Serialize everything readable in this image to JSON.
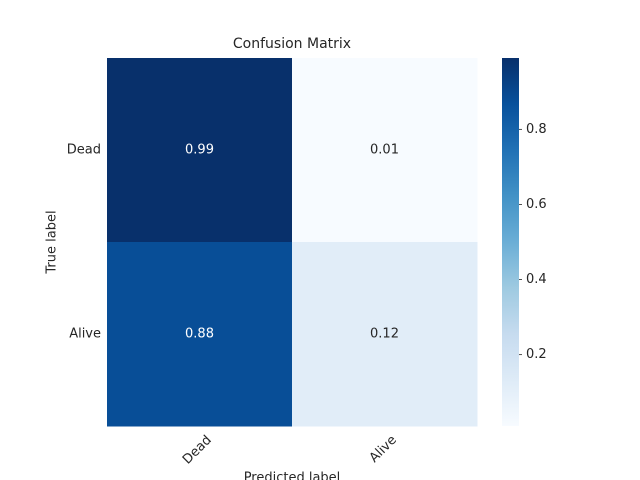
{
  "chart_data": {
    "type": "heatmap",
    "title": "Confusion Matrix",
    "x_categories": [
      "Dead",
      "Alive"
    ],
    "y_categories": [
      "Dead",
      "Alive"
    ],
    "values": [
      [
        0.99,
        0.01
      ],
      [
        0.88,
        0.12
      ]
    ],
    "xlabel": "Predicted label",
    "ylabel": "True label",
    "colormap": "Blues",
    "colorbar_lim": [
      0.01,
      0.99
    ],
    "colorbar_ticks": [
      0.2,
      0.4,
      0.6,
      0.8
    ]
  }
}
